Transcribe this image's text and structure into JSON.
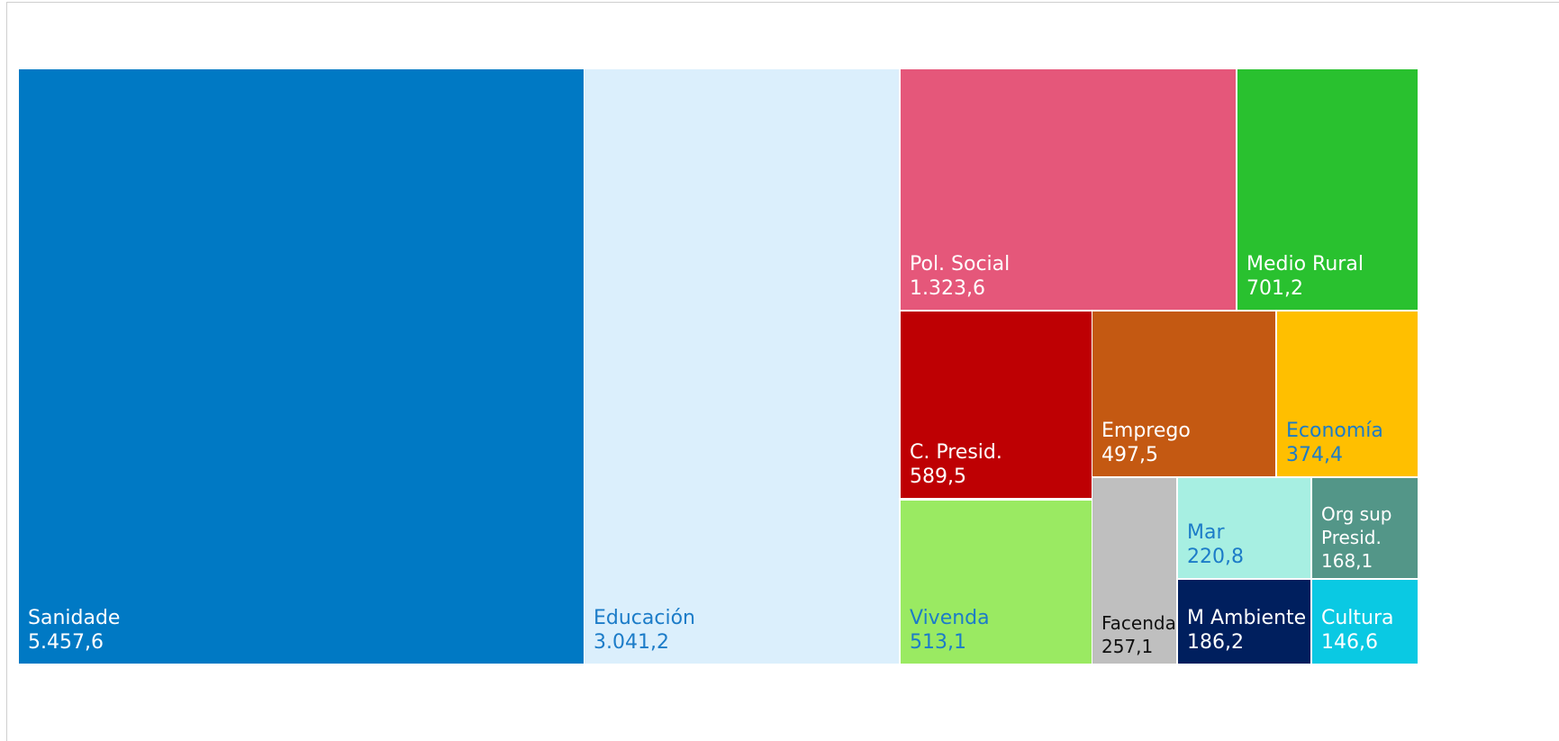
{
  "chart_data": {
    "type": "treemap",
    "decimal_separator": ",",
    "items": [
      {
        "name": "Sanidade",
        "value_label": "5.457,6",
        "value": 5457.6,
        "color": "#0079C4",
        "text_color": "#FFFFFF"
      },
      {
        "name": "Educación",
        "value_label": "3.041,2",
        "value": 3041.2,
        "color": "#DBEFFC",
        "text_color": "#1C7CC8"
      },
      {
        "name": "Pol. Social",
        "value_label": "1.323,6",
        "value": 1323.6,
        "color": "#E5577A",
        "text_color": "#FFFFFF"
      },
      {
        "name": "Medio Rural",
        "value_label": "701,2",
        "value": 701.2,
        "color": "#29C12F",
        "text_color": "#FFFFFF"
      },
      {
        "name": "C. Presid.",
        "value_label": "589,5",
        "value": 589.5,
        "color": "#BE0003",
        "text_color": "#FFFFFF"
      },
      {
        "name": "Emprego",
        "value_label": "497,5",
        "value": 497.5,
        "color": "#C45912",
        "text_color": "#FFFFFF"
      },
      {
        "name": "Economía",
        "value_label": "374,4",
        "value": 374.4,
        "color": "#FFBF00",
        "text_color": "#1C7CC8"
      },
      {
        "name": "Vivenda",
        "value_label": "513,1",
        "value": 513.1,
        "color": "#9AEA62",
        "text_color": "#1C7CC8"
      },
      {
        "name": "Facenda",
        "value_label": "257,1",
        "value": 257.1,
        "color": "#BFBFBF",
        "text_color": "#111111"
      },
      {
        "name": "Mar",
        "value_label": "220,8",
        "value": 220.8,
        "color": "#A7EFE2",
        "text_color": "#1C7CC8"
      },
      {
        "name": "Org sup Presid.",
        "value_label": "168,1",
        "value": 168.1,
        "color": "#539688",
        "text_color": "#FFFFFF"
      },
      {
        "name": "M Ambiente",
        "value_label": "186,2",
        "value": 186.2,
        "color": "#001F5E",
        "text_color": "#FFFFFF"
      },
      {
        "name": "Cultura",
        "value_label": "146,6",
        "value": 146.6,
        "color": "#0AC9E3",
        "text_color": "#FFFFFF"
      }
    ]
  }
}
